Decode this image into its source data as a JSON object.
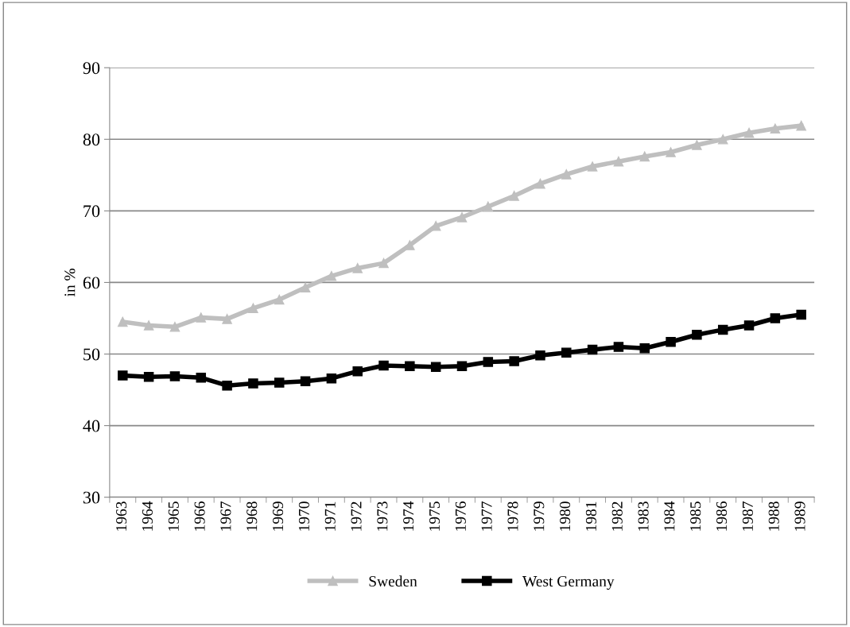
{
  "chart_data": {
    "type": "line",
    "ylabel": "in %",
    "categories": [
      "1963",
      "1964",
      "1965",
      "1966",
      "1967",
      "1968",
      "1969",
      "1970",
      "1971",
      "1972",
      "1973",
      "1974",
      "1975",
      "1976",
      "1977",
      "1978",
      "1979",
      "1980",
      "1981",
      "1982",
      "1983",
      "1984",
      "1985",
      "1986",
      "1987",
      "1988",
      "1989"
    ],
    "series": [
      {
        "name": "Sweden",
        "color": "#bfbfbf",
        "marker": "triangle",
        "values": [
          54.5,
          54.0,
          53.8,
          55.1,
          54.9,
          56.4,
          57.6,
          59.3,
          60.9,
          62.0,
          62.7,
          65.2,
          67.9,
          69.1,
          70.6,
          72.1,
          73.8,
          75.1,
          76.2,
          76.9,
          77.6,
          78.2,
          79.2,
          80.0,
          80.9,
          81.5,
          81.9
        ]
      },
      {
        "name": "West Germany",
        "color": "#000000",
        "marker": "square",
        "values": [
          47.0,
          46.8,
          46.9,
          46.7,
          45.6,
          45.9,
          46.0,
          46.2,
          46.6,
          47.6,
          48.4,
          48.3,
          48.2,
          48.3,
          48.9,
          49.0,
          49.8,
          50.2,
          50.6,
          51.0,
          50.8,
          51.7,
          52.7,
          53.4,
          54.0,
          55.0,
          55.5
        ]
      }
    ],
    "ylim": [
      30,
      90
    ],
    "yticks": [
      30,
      40,
      50,
      60,
      70,
      80,
      90
    ],
    "grid": "y",
    "legend": "bottom",
    "line_style": "solid"
  }
}
